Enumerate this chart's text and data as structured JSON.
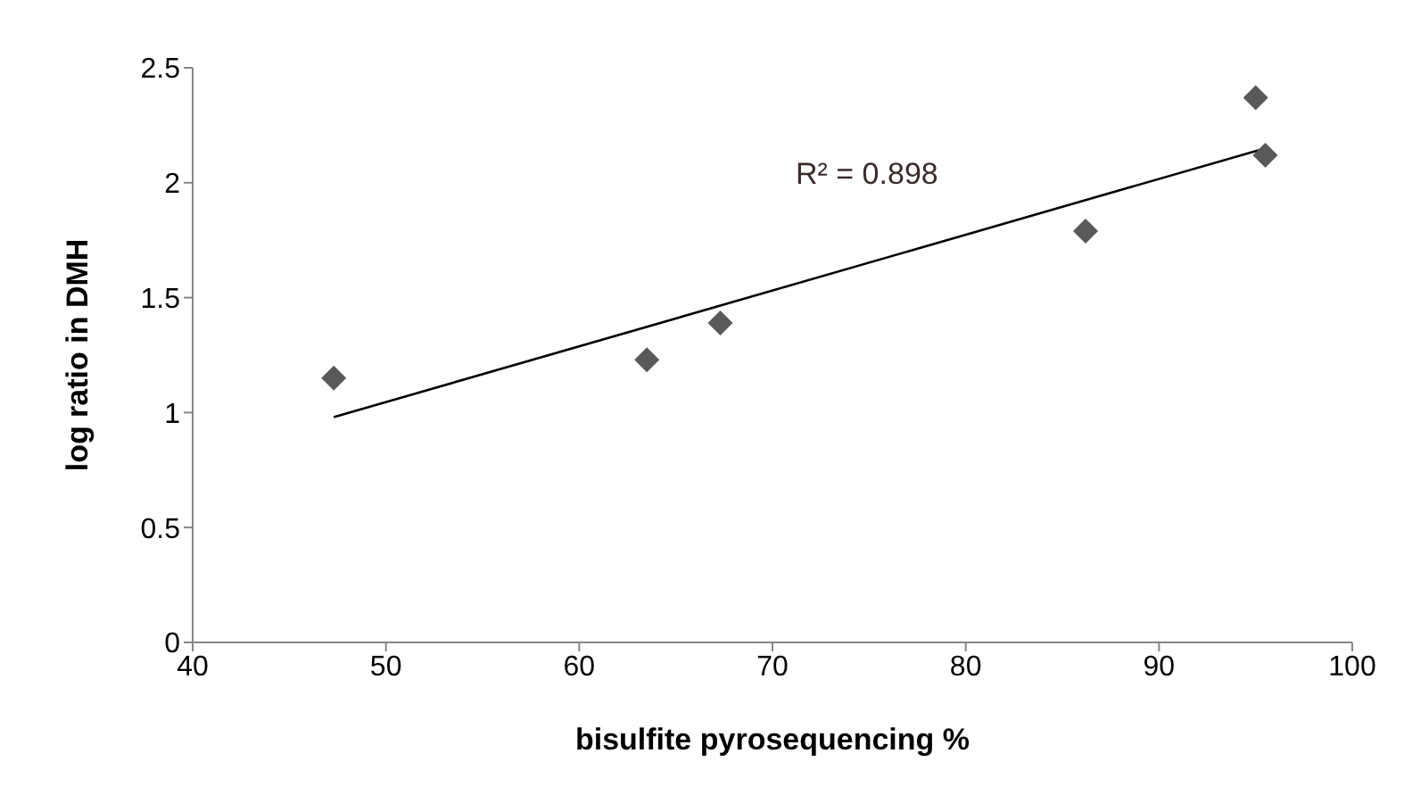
{
  "chart_data": {
    "type": "scatter",
    "xlabel": "bisulfite pyrosequencing %",
    "ylabel": "log ratio in DMH",
    "annotations": [
      "R² = 0.898"
    ],
    "xlim": [
      40,
      100
    ],
    "xticks": [
      40,
      50,
      60,
      70,
      80,
      90,
      100
    ],
    "ylim": [
      0,
      2.5
    ],
    "yticks": [
      0,
      0.5,
      1,
      1.5,
      2,
      2.5
    ],
    "grid": false,
    "legend": false,
    "marker": "diamond",
    "series": [
      {
        "color": "#595959",
        "x": [
          47.3,
          63.5,
          67.3,
          86.2,
          95.0,
          95.5
        ],
        "values": [
          1.15,
          1.23,
          1.39,
          1.79,
          2.37,
          2.12
        ]
      },
      {
        "type": "line",
        "color": "#000000",
        "marker": "none",
        "line_style": "solid",
        "x": [
          47.3,
          95.5
        ],
        "values": [
          0.98,
          2.15
        ]
      }
    ]
  }
}
